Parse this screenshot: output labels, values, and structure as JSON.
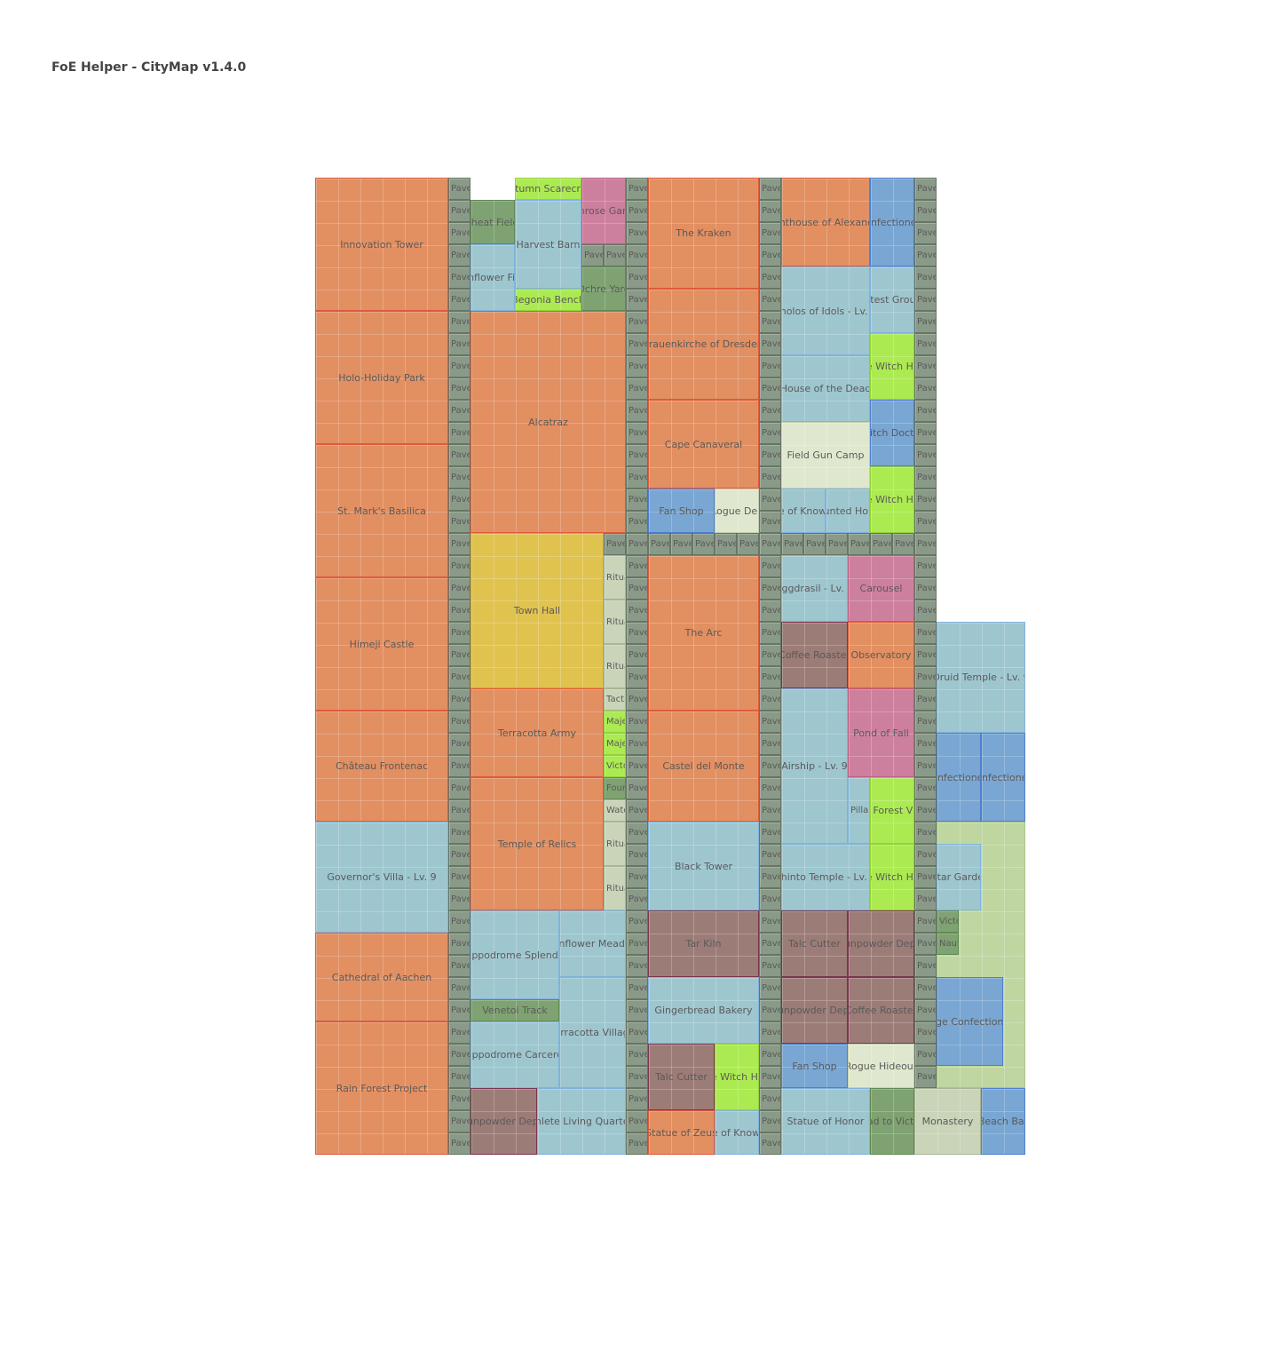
{
  "title": "FoE Helper - CityMap v1.4.0",
  "grid": {
    "cols": 32,
    "rows": 44
  },
  "types": {
    "main": "#e28f61",
    "cul": "#9ec6cf",
    "road": "#8a9a88",
    "mil": "#c9d4b9",
    "cons": "#79a6d2",
    "gold": "#e0c24f",
    "pink": "#cd7f9e",
    "lime": "#acea52",
    "grn": "#7ea271",
    "brn": "#9c7c77",
    "pale": "#dfe8ce",
    "ltg": "#bfd6a1"
  },
  "buildings": [
    {
      "n": "Innovation Tower",
      "t": "main",
      "c": 0,
      "r": 0,
      "w": 6,
      "h": 6
    },
    {
      "n": "Holo-Holiday Park",
      "t": "main",
      "c": 0,
      "r": 6,
      "w": 6,
      "h": 6
    },
    {
      "n": "St. Mark's Basilica",
      "t": "main",
      "c": 0,
      "r": 12,
      "w": 6,
      "h": 6
    },
    {
      "n": "Himeji Castle",
      "t": "main",
      "c": 0,
      "r": 18,
      "w": 6,
      "h": 6
    },
    {
      "n": "Château Frontenac",
      "t": "main",
      "c": 0,
      "r": 24,
      "w": 6,
      "h": 5
    },
    {
      "n": "Governor's Villa - Lv. 9",
      "t": "cul",
      "c": 0,
      "r": 29,
      "w": 6,
      "h": 5
    },
    {
      "n": "Cathedral of Aachen",
      "t": "main",
      "c": 0,
      "r": 34,
      "w": 6,
      "h": 4
    },
    {
      "n": "Rain Forest Project",
      "t": "main",
      "c": 0,
      "r": 38,
      "w": 6,
      "h": 6
    },
    {
      "n": "Wheat Fields",
      "t": "grn",
      "c": 7,
      "r": 1,
      "w": 2,
      "h": 2
    },
    {
      "n": "Autumn Scarecrow",
      "t": "lime",
      "c": 9,
      "r": 0,
      "w": 3,
      "h": 1
    },
    {
      "n": "Primrose Garden",
      "t": "pink",
      "c": 12,
      "r": 0,
      "w": 2,
      "h": 3
    },
    {
      "n": "Harvest Barn",
      "t": "cul",
      "c": 9,
      "r": 1,
      "w": 3,
      "h": 4
    },
    {
      "n": "Sunflower Field",
      "t": "cul",
      "c": 7,
      "r": 3,
      "w": 2,
      "h": 3
    },
    {
      "n": "Ochre Yard",
      "t": "grn",
      "c": 12,
      "r": 4,
      "w": 2,
      "h": 2
    },
    {
      "n": "Begonia Bench",
      "t": "lime",
      "c": 9,
      "r": 5,
      "w": 3,
      "h": 1
    },
    {
      "n": "Alcatraz",
      "t": "main",
      "c": 7,
      "r": 6,
      "w": 7,
      "h": 10
    },
    {
      "n": "Town Hall",
      "t": "gold",
      "c": 7,
      "r": 16,
      "w": 6,
      "h": 7
    },
    {
      "n": "Terracotta Army",
      "t": "main",
      "c": 7,
      "r": 23,
      "w": 6,
      "h": 4
    },
    {
      "n": "Temple of Relics",
      "t": "main",
      "c": 7,
      "r": 27,
      "w": 6,
      "h": 6
    },
    {
      "n": "Hippodrome Splendor",
      "t": "cul",
      "c": 7,
      "r": 33,
      "w": 4,
      "h": 4
    },
    {
      "n": "Sunflower Meadow",
      "t": "cul",
      "c": 11,
      "r": 33,
      "w": 3,
      "h": 3
    },
    {
      "n": "Venetoi Track",
      "t": "grn",
      "c": 7,
      "r": 37,
      "w": 4,
      "h": 1
    },
    {
      "n": "Terracotta Village",
      "t": "cul",
      "c": 11,
      "r": 36,
      "w": 3,
      "h": 5
    },
    {
      "n": "Hippodrome Carceres",
      "t": "cul",
      "c": 7,
      "r": 38,
      "w": 4,
      "h": 3
    },
    {
      "n": "Gunpowder Depot",
      "t": "brn",
      "c": 7,
      "r": 41,
      "w": 3,
      "h": 3
    },
    {
      "n": "Athlete Living Quarters",
      "t": "cul",
      "c": 10,
      "r": 41,
      "w": 4,
      "h": 3
    },
    {
      "n": "Ritual Site",
      "t": "mil",
      "c": 13,
      "r": 17,
      "w": 1,
      "h": 2
    },
    {
      "n": "Ritual Site",
      "t": "mil",
      "c": 13,
      "r": 19,
      "w": 1,
      "h": 2
    },
    {
      "n": "Ritual Site",
      "t": "mil",
      "c": 13,
      "r": 21,
      "w": 1,
      "h": 2
    },
    {
      "n": "Tactical Camp",
      "t": "mil",
      "c": 13,
      "r": 23,
      "w": 1,
      "h": 1
    },
    {
      "n": "Majestic Garden",
      "t": "lime",
      "c": 13,
      "r": 24,
      "w": 1,
      "h": 1
    },
    {
      "n": "Majestic Garden",
      "t": "lime",
      "c": 13,
      "r": 25,
      "w": 1,
      "h": 1
    },
    {
      "n": "Victory Tower",
      "t": "lime",
      "c": 13,
      "r": 26,
      "w": 1,
      "h": 1
    },
    {
      "n": "Fountain",
      "t": "grn",
      "c": 13,
      "r": 27,
      "w": 1,
      "h": 1
    },
    {
      "n": "Watchfire",
      "t": "mil",
      "c": 13,
      "r": 28,
      "w": 1,
      "h": 1
    },
    {
      "n": "Ritual Site",
      "t": "mil",
      "c": 13,
      "r": 29,
      "w": 1,
      "h": 2
    },
    {
      "n": "Ritual Site",
      "t": "mil",
      "c": 13,
      "r": 31,
      "w": 1,
      "h": 2
    },
    {
      "n": "The Kraken",
      "t": "main",
      "c": 15,
      "r": 0,
      "w": 5,
      "h": 5
    },
    {
      "n": "Frauenkirche of Dresden",
      "t": "main",
      "c": 15,
      "r": 5,
      "w": 5,
      "h": 5
    },
    {
      "n": "Cape Canaveral",
      "t": "main",
      "c": 15,
      "r": 10,
      "w": 5,
      "h": 4
    },
    {
      "n": "Fan Shop",
      "t": "cons",
      "c": 15,
      "r": 14,
      "w": 3,
      "h": 2
    },
    {
      "n": "Rogue Den",
      "t": "pale",
      "c": 18,
      "r": 14,
      "w": 2,
      "h": 2
    },
    {
      "n": "The Arc",
      "t": "main",
      "c": 15,
      "r": 17,
      "w": 5,
      "h": 7
    },
    {
      "n": "Castel del Monte",
      "t": "main",
      "c": 15,
      "r": 24,
      "w": 5,
      "h": 5
    },
    {
      "n": "Black Tower",
      "t": "cul",
      "c": 15,
      "r": 29,
      "w": 5,
      "h": 4
    },
    {
      "n": "Tar Kiln",
      "t": "brn",
      "c": 15,
      "r": 33,
      "w": 5,
      "h": 3
    },
    {
      "n": "Gingerbread Bakery",
      "t": "cul",
      "c": 15,
      "r": 36,
      "w": 5,
      "h": 3
    },
    {
      "n": "Talc Cutter",
      "t": "brn",
      "c": 15,
      "r": 39,
      "w": 3,
      "h": 3
    },
    {
      "n": "Little Witch House",
      "t": "lime",
      "c": 18,
      "r": 39,
      "w": 2,
      "h": 3
    },
    {
      "n": "Statue of Zeus",
      "t": "main",
      "c": 15,
      "r": 42,
      "w": 3,
      "h": 2
    },
    {
      "n": "Shrine of Knowledge",
      "t": "cul",
      "c": 18,
      "r": 42,
      "w": 2,
      "h": 2
    },
    {
      "n": "Lighthouse of Alexandria",
      "t": "main",
      "c": 21,
      "r": 0,
      "w": 4,
      "h": 4
    },
    {
      "n": "Confectionery",
      "t": "cons",
      "c": 25,
      "r": 0,
      "w": 2,
      "h": 4
    },
    {
      "n": "Tholos of Idols - Lv. 9",
      "t": "cul",
      "c": 21,
      "r": 4,
      "w": 4,
      "h": 4
    },
    {
      "n": "Contest Grounds",
      "t": "cul",
      "c": 25,
      "r": 4,
      "w": 2,
      "h": 3
    },
    {
      "n": "Little Witch House",
      "t": "lime",
      "c": 25,
      "r": 7,
      "w": 2,
      "h": 3
    },
    {
      "n": "House of the Dead",
      "t": "cul",
      "c": 21,
      "r": 8,
      "w": 4,
      "h": 3
    },
    {
      "n": "Witch Doctor",
      "t": "cons",
      "c": 25,
      "r": 10,
      "w": 2,
      "h": 3
    },
    {
      "n": "Field Gun Camp",
      "t": "pale",
      "c": 21,
      "r": 11,
      "w": 4,
      "h": 3
    },
    {
      "n": "Little Witch House",
      "t": "lime",
      "c": 25,
      "r": 13,
      "w": 2,
      "h": 3
    },
    {
      "n": "Shrine of Knowledge",
      "t": "cul",
      "c": 21,
      "r": 14,
      "w": 2,
      "h": 2
    },
    {
      "n": "Haunted House",
      "t": "cul",
      "c": 23,
      "r": 14,
      "w": 2,
      "h": 2
    },
    {
      "n": "Yggdrasil - Lv. 9",
      "t": "cul",
      "c": 21,
      "r": 17,
      "w": 3,
      "h": 3
    },
    {
      "n": "Carousel",
      "t": "pink",
      "c": 24,
      "r": 17,
      "w": 3,
      "h": 3
    },
    {
      "n": "Coffee Roaster",
      "t": "brn",
      "c": 21,
      "r": 20,
      "w": 3,
      "h": 3
    },
    {
      "n": "Observatory",
      "t": "main",
      "c": 24,
      "r": 20,
      "w": 3,
      "h": 3
    },
    {
      "n": "Airship - Lv. 9",
      "t": "cul",
      "c": 21,
      "r": 23,
      "w": 3,
      "h": 7
    },
    {
      "n": "Pond of Fall",
      "t": "pink",
      "c": 24,
      "r": 23,
      "w": 3,
      "h": 4
    },
    {
      "n": "Pillar of Heroes",
      "t": "cul",
      "c": 24,
      "r": 27,
      "w": 1,
      "h": 3
    },
    {
      "n": "Little Forest Village",
      "t": "lime",
      "c": 25,
      "r": 27,
      "w": 2,
      "h": 3
    },
    {
      "n": "Shinto Temple - Lv. 9",
      "t": "cul",
      "c": 21,
      "r": 30,
      "w": 4,
      "h": 3
    },
    {
      "n": "Little Witch House",
      "t": "lime",
      "c": 25,
      "r": 30,
      "w": 2,
      "h": 3
    },
    {
      "n": "Talc Cutter",
      "t": "brn",
      "c": 21,
      "r": 33,
      "w": 3,
      "h": 3
    },
    {
      "n": "Gunpowder Depot",
      "t": "brn",
      "c": 24,
      "r": 33,
      "w": 3,
      "h": 3
    },
    {
      "n": "Gunpowder Depot",
      "t": "brn",
      "c": 21,
      "r": 36,
      "w": 3,
      "h": 3
    },
    {
      "n": "Coffee Roaster",
      "t": "brn",
      "c": 24,
      "r": 36,
      "w": 3,
      "h": 3
    },
    {
      "n": "Fan Shop",
      "t": "cons",
      "c": 21,
      "r": 39,
      "w": 3,
      "h": 2
    },
    {
      "n": "Rogue Hideout",
      "t": "pale",
      "c": 24,
      "r": 39,
      "w": 3,
      "h": 2
    },
    {
      "n": "Statue of Honor",
      "t": "cul",
      "c": 21,
      "r": 41,
      "w": 4,
      "h": 3
    },
    {
      "n": "Road to Victory",
      "t": "grn",
      "c": 25,
      "r": 41,
      "w": 2,
      "h": 3
    },
    {
      "n": "Druid Temple - Lv. 9",
      "t": "cul",
      "c": 28,
      "r": 20,
      "w": 4,
      "h": 5
    },
    {
      "n": "Confectionery",
      "t": "cons",
      "c": 28,
      "r": 25,
      "w": 2,
      "h": 4
    },
    {
      "n": "Confectionery",
      "t": "cons",
      "c": 30,
      "r": 25,
      "w": 2,
      "h": 4
    },
    {
      "n": "",
      "t": "ltg",
      "c": 28,
      "r": 29,
      "w": 4,
      "h": 12
    },
    {
      "n": "Altar Garden",
      "t": "cul",
      "c": 28,
      "r": 30,
      "w": 2,
      "h": 3
    },
    {
      "n": "Victory Tower",
      "t": "grn",
      "c": 28,
      "r": 33,
      "w": 1,
      "h": 1
    },
    {
      "n": "Nautilus Shell",
      "t": "grn",
      "c": 28,
      "r": 34,
      "w": 1,
      "h": 1
    },
    {
      "n": "Large Confectionery",
      "t": "cons",
      "c": 28,
      "r": 36,
      "w": 3,
      "h": 4
    },
    {
      "n": "Monastery",
      "t": "mil",
      "c": 27,
      "r": 41,
      "w": 3,
      "h": 3
    },
    {
      "n": "Beach Bar",
      "t": "cons",
      "c": 30,
      "r": 41,
      "w": 2,
      "h": 3
    }
  ],
  "roads": [
    {
      "c": 6,
      "r": 0,
      "len": 44,
      "dir": "v"
    },
    {
      "c": 14,
      "r": 0,
      "len": 44,
      "dir": "v"
    },
    {
      "c": 20,
      "r": 0,
      "len": 44,
      "dir": "v"
    },
    {
      "c": 27,
      "r": 0,
      "len": 41,
      "dir": "v"
    },
    {
      "c": 15,
      "r": 16,
      "len": 12,
      "dir": "h"
    },
    {
      "c": 13,
      "r": 16,
      "len": 1,
      "dir": "h"
    },
    {
      "c": 12,
      "r": 3,
      "len": 2,
      "dir": "h"
    },
    {
      "c": 28,
      "r": 29,
      "len": 1,
      "dir": "h"
    }
  ],
  "road_label": "Pavement"
}
